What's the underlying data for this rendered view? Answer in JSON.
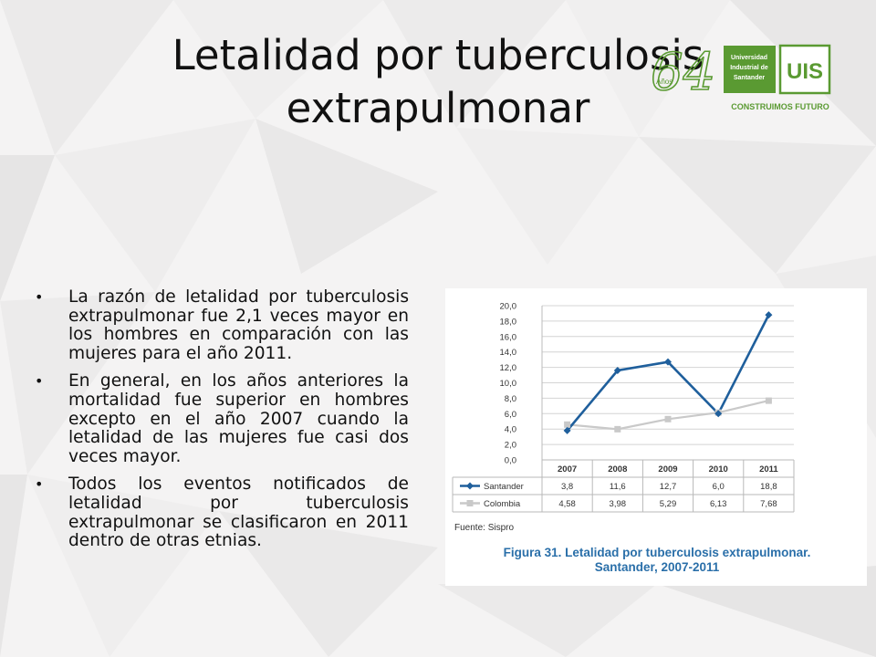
{
  "slide": {
    "title_line1": "Letalidad por tuberculosis",
    "title_line2": "extrapulmonar"
  },
  "logo": {
    "anniversary_number": "64",
    "anniversary_word": "Años",
    "university_line1": "Universidad",
    "university_line2": "Industrial de",
    "university_line3": "Santander",
    "emblem_text": "UIS",
    "slogan": "CONSTRUIMOS FUTURO",
    "color": "#5a9a32"
  },
  "bullets": [
    "La razón de letalidad por tuberculosis extrapulmonar fue 2,1 veces mayor en los hombres en comparación con las mujeres para el año 2011.",
    "En general, en los años anteriores la mortalidad fue superior en hombres excepto en el año 2007 cuando la letalidad de las mujeres fue casi dos veces mayor.",
    "Todos los eventos notificados de letalidad por tuberculosis extrapulmonar se clasificaron en 2011 dentro de otras etnias."
  ],
  "figure": {
    "source": "Fuente: Sispro",
    "caption_line1": "Figura 31. Letalidad por tuberculosis extrapulmonar.",
    "caption_line2": "Santander, 2007-2011"
  },
  "chart_data": {
    "type": "line",
    "categories": [
      "2007",
      "2008",
      "2009",
      "2010",
      "2011"
    ],
    "series": [
      {
        "name": "Santander",
        "values": [
          3.8,
          11.6,
          12.7,
          6.0,
          18.8
        ],
        "labels": [
          "3,8",
          "11,6",
          "12,7",
          "6,0",
          "18,8"
        ],
        "color": "#1f5f9c",
        "marker": "diamond"
      },
      {
        "name": "Colombia",
        "values": [
          4.58,
          3.98,
          5.29,
          6.13,
          7.68
        ],
        "labels": [
          "4,58",
          "3,98",
          "5,29",
          "6,13",
          "7,68"
        ],
        "color": "#c9c9c9",
        "marker": "square"
      }
    ],
    "ylim": [
      0,
      20
    ],
    "yticks": [
      "0,0",
      "2,0",
      "4,0",
      "6,0",
      "8,0",
      "10,0",
      "12,0",
      "14,0",
      "16,0",
      "18,0",
      "20,0"
    ],
    "grid": true,
    "legend": "data-table"
  }
}
